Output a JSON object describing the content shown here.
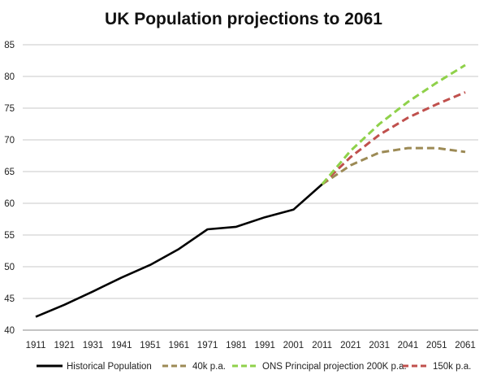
{
  "chart_data": {
    "type": "line",
    "title": "UK Population projections to 2061",
    "xlabel": "",
    "ylabel": "",
    "x_ticks": [
      "1911",
      "1921",
      "1931",
      "1941",
      "1951",
      "1961",
      "1971",
      "1981",
      "1991",
      "2001",
      "2011",
      "2021",
      "2031",
      "2041",
      "2051",
      "2061"
    ],
    "y_ticks": [
      "40",
      "45",
      "50",
      "55",
      "60",
      "65",
      "70",
      "75",
      "80",
      "85"
    ],
    "xlim": [
      1911,
      2061
    ],
    "ylim": [
      40,
      85
    ],
    "grid": true,
    "legend_position": "bottom",
    "series": [
      {
        "name": "Historical Population",
        "color": "#000000",
        "style": "solid",
        "points": [
          [
            1911,
            42.1
          ],
          [
            1921,
            44.0
          ],
          [
            1931,
            46.1
          ],
          [
            1941,
            48.3
          ],
          [
            1951,
            50.3
          ],
          [
            1961,
            52.8
          ],
          [
            1971,
            55.9
          ],
          [
            1981,
            56.3
          ],
          [
            1991,
            57.8
          ],
          [
            2001,
            59.0
          ],
          [
            2011,
            63.0
          ]
        ]
      },
      {
        "name": "40k p.a.",
        "color": "#9c8a55",
        "style": "dashed",
        "points": [
          [
            2011,
            63.0
          ],
          [
            2021,
            66.0
          ],
          [
            2031,
            68.0
          ],
          [
            2041,
            68.7
          ],
          [
            2051,
            68.7
          ],
          [
            2061,
            68.1
          ]
        ]
      },
      {
        "name": "ONS Principal projection 200K p.a.",
        "color": "#8fd14a",
        "style": "dashed",
        "points": [
          [
            2011,
            63.0
          ],
          [
            2021,
            68.3
          ],
          [
            2031,
            72.5
          ],
          [
            2041,
            76.0
          ],
          [
            2051,
            79.0
          ],
          [
            2061,
            81.8
          ]
        ]
      },
      {
        "name": "150k p.a.",
        "color": "#c0504d",
        "style": "dashed",
        "points": [
          [
            2011,
            63.0
          ],
          [
            2021,
            67.3
          ],
          [
            2031,
            70.8
          ],
          [
            2041,
            73.5
          ],
          [
            2051,
            75.6
          ],
          [
            2061,
            77.5
          ]
        ]
      }
    ]
  }
}
